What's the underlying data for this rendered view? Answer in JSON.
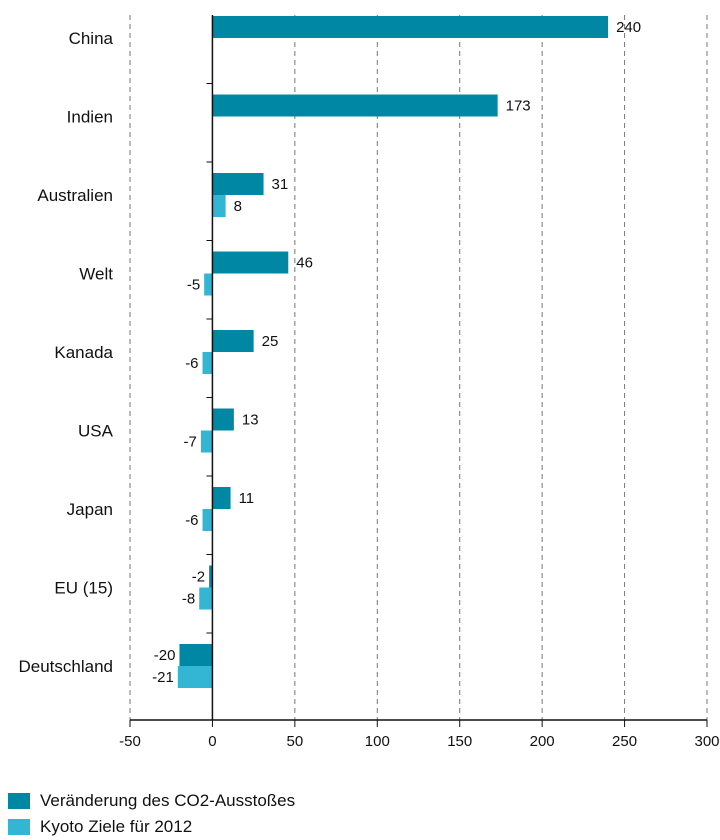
{
  "chart_data": {
    "type": "bar",
    "orientation": "horizontal",
    "categories": [
      "China",
      "Indien",
      "Australien",
      "Welt",
      "Kanada",
      "USA",
      "Japan",
      "EU (15)",
      "Deutschland"
    ],
    "series": [
      {
        "name": "Veränderung des CO2-Ausstoßes",
        "color": "#0087a3",
        "values": [
          240,
          173,
          31,
          46,
          25,
          13,
          11,
          -2,
          -20
        ]
      },
      {
        "name": "Kyoto Ziele für 2012",
        "color": "#33b5d4",
        "values": [
          null,
          null,
          8,
          -5,
          -6,
          -7,
          -6,
          -8,
          -21
        ]
      }
    ],
    "value_labels": [
      [
        "240",
        "173",
        "31",
        "46",
        "25",
        "13",
        "11",
        "-2",
        "-20"
      ],
      [
        "",
        "",
        "8",
        "-5",
        "-6",
        "-7",
        "-6",
        "-8",
        "-21"
      ]
    ],
    "xlim": [
      -50,
      300
    ],
    "xticks": [
      -50,
      0,
      50,
      100,
      150,
      200,
      250,
      300
    ],
    "xtick_labels": [
      "-50",
      "0",
      "50",
      "100",
      "150",
      "200",
      "250",
      "300"
    ],
    "grid": "vertical-dashed",
    "legend_position": "bottom-left"
  }
}
